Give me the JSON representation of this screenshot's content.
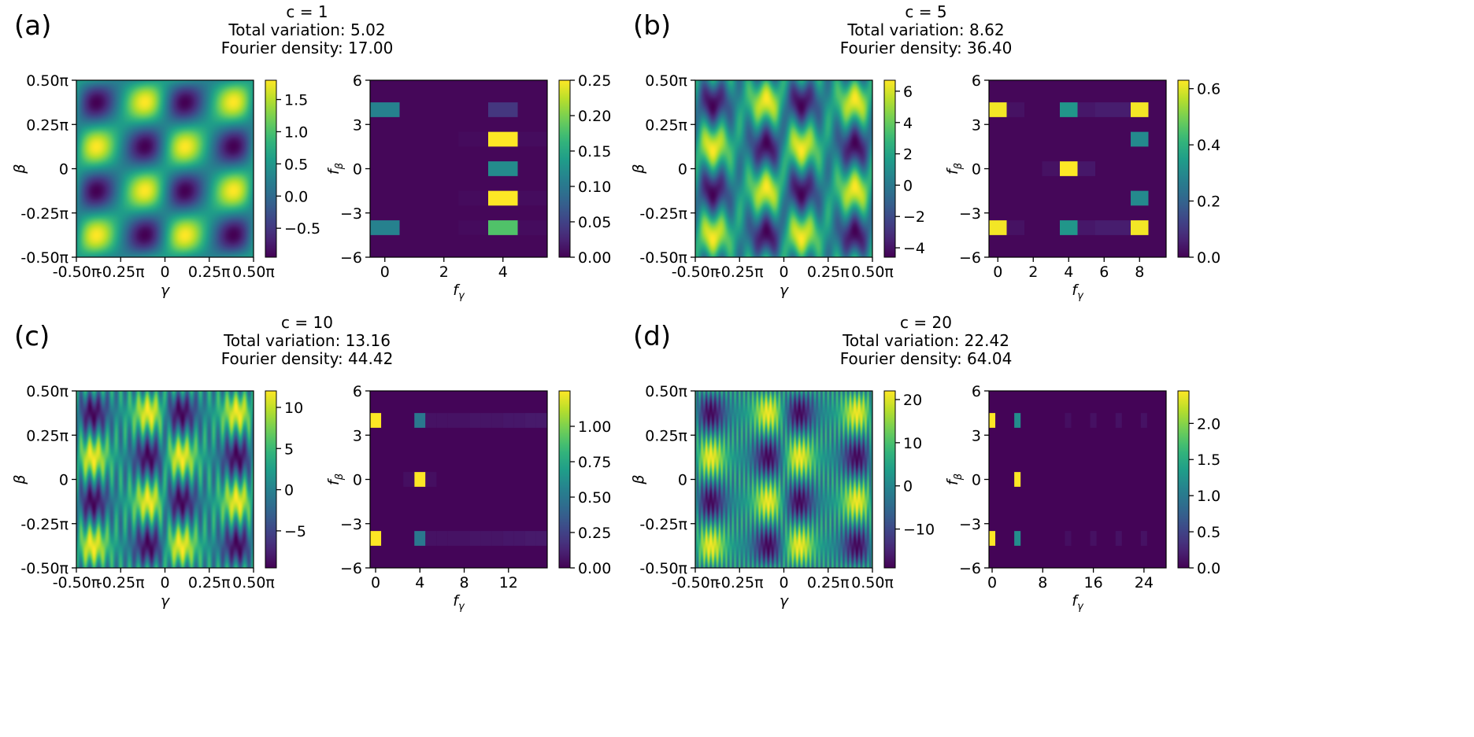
{
  "colors": {
    "viridis": [
      "#440154",
      "#482878",
      "#3e4989",
      "#31688e",
      "#26828e",
      "#1f9e89",
      "#35b779",
      "#6ece58",
      "#b5de2b",
      "#fde725"
    ]
  },
  "chart_data": [
    {
      "panel_label": "(a)",
      "title": [
        "c = 1",
        "Total variation: 5.02",
        "Fourier density: 17.00"
      ],
      "landscape": {
        "type": "heatmap",
        "xlabel": "γ",
        "ylabel": "β",
        "x_ticks": [
          "-0.50π",
          "-0.25π",
          "0",
          "0.25π",
          "0.50π"
        ],
        "y_ticks": [
          "0.50π",
          "0.25π",
          "0",
          "-0.25π",
          "-0.50π"
        ],
        "c": 1,
        "colorbar": {
          "min": -0.95,
          "max": 1.8,
          "ticks": [
            -0.5,
            0.0,
            0.5,
            1.0,
            1.5
          ],
          "labels": [
            "−0.5",
            "0.0",
            "0.5",
            "1.0",
            "1.5"
          ]
        }
      },
      "spectrum": {
        "type": "heatmap",
        "xlabel": "f_γ",
        "ylabel": "f_β",
        "x_range": [
          -0.5,
          5.5
        ],
        "y_range": [
          -6,
          6
        ],
        "x_ticks": [
          0,
          2,
          4
        ],
        "y_ticks": [
          6,
          3,
          0,
          -3,
          -6
        ],
        "background": 0.004,
        "cells": [
          [
            0,
            4,
            0.11
          ],
          [
            0,
            -4,
            0.11
          ],
          [
            4,
            4,
            0.04
          ],
          [
            4,
            2,
            0.25
          ],
          [
            4,
            0,
            0.12
          ],
          [
            4,
            -2,
            0.25
          ],
          [
            4,
            -4,
            0.18
          ],
          [
            3,
            2,
            0.007
          ],
          [
            3,
            -2,
            0.007
          ],
          [
            3,
            -4,
            0.007
          ],
          [
            5,
            2,
            0.008
          ],
          [
            5,
            -2,
            0.008
          ],
          [
            5,
            -4,
            0.008
          ]
        ],
        "colorbar": {
          "min": 0,
          "max": 0.25,
          "ticks": [
            0.0,
            0.05,
            0.1,
            0.15,
            0.2,
            0.25
          ],
          "labels": [
            "0.00",
            "0.05",
            "0.10",
            "0.15",
            "0.20",
            "0.25"
          ]
        }
      }
    },
    {
      "panel_label": "(b)",
      "title": [
        "c = 5",
        "Total variation: 8.62",
        "Fourier density: 36.40"
      ],
      "landscape": {
        "type": "heatmap",
        "xlabel": "γ",
        "ylabel": "β",
        "x_ticks": [
          "-0.50π",
          "-0.25π",
          "0",
          "0.25π",
          "0.50π"
        ],
        "y_ticks": [
          "0.50π",
          "0.25π",
          "0",
          "-0.25π",
          "-0.50π"
        ],
        "c": 5,
        "colorbar": {
          "min": -4.6,
          "max": 6.7,
          "ticks": [
            -4,
            -2,
            0,
            2,
            4,
            6
          ],
          "labels": [
            "−4",
            "−2",
            "0",
            "2",
            "4",
            "6"
          ]
        }
      },
      "spectrum": {
        "type": "heatmap",
        "xlabel": "f_γ",
        "ylabel": "f_β",
        "x_range": [
          -0.5,
          9.5
        ],
        "y_range": [
          -6,
          6
        ],
        "x_ticks": [
          0,
          2,
          4,
          6,
          8
        ],
        "y_ticks": [
          6,
          3,
          0,
          -3,
          -6
        ],
        "background": 0.01,
        "cells": [
          [
            0,
            4,
            0.62
          ],
          [
            0,
            -4,
            0.62
          ],
          [
            4,
            4,
            0.33
          ],
          [
            4,
            -4,
            0.33
          ],
          [
            4,
            0,
            0.63
          ],
          [
            8,
            4,
            0.62
          ],
          [
            8,
            -4,
            0.62
          ],
          [
            8,
            2,
            0.3
          ],
          [
            8,
            -2,
            0.3
          ],
          [
            5,
            4,
            0.04
          ],
          [
            6,
            4,
            0.05
          ],
          [
            7,
            4,
            0.05
          ],
          [
            5,
            0,
            0.04
          ],
          [
            3,
            0,
            0.03
          ],
          [
            5,
            -4,
            0.04
          ],
          [
            6,
            -4,
            0.05
          ],
          [
            7,
            -4,
            0.05
          ],
          [
            1,
            4,
            0.03
          ],
          [
            1,
            -4,
            0.03
          ]
        ],
        "colorbar": {
          "min": 0,
          "max": 0.63,
          "ticks": [
            0.0,
            0.2,
            0.4,
            0.6
          ],
          "labels": [
            "0.0",
            "0.2",
            "0.4",
            "0.6"
          ]
        }
      }
    },
    {
      "panel_label": "(c)",
      "title": [
        "c = 10",
        "Total variation: 13.16",
        "Fourier density: 44.42"
      ],
      "landscape": {
        "type": "heatmap",
        "xlabel": "γ",
        "ylabel": "β",
        "x_ticks": [
          "-0.50π",
          "-0.25π",
          "0",
          "0.25π",
          "0.50π"
        ],
        "y_ticks": [
          "0.50π",
          "0.25π",
          "0",
          "-0.25π",
          "-0.50π"
        ],
        "c": 10,
        "colorbar": {
          "min": -9.5,
          "max": 12,
          "ticks": [
            -5,
            0,
            5,
            10
          ],
          "labels": [
            "−5",
            "0",
            "5",
            "10"
          ]
        }
      },
      "spectrum": {
        "type": "heatmap",
        "xlabel": "f_γ",
        "ylabel": "f_β",
        "x_range": [
          -0.5,
          15.5
        ],
        "y_range": [
          -6,
          6
        ],
        "x_ticks": [
          0,
          4,
          8,
          12
        ],
        "y_ticks": [
          6,
          3,
          0,
          -3,
          -6
        ],
        "background": 0.015,
        "cells": [
          [
            0,
            4,
            1.25
          ],
          [
            0,
            -4,
            1.25
          ],
          [
            4,
            4,
            0.5
          ],
          [
            4,
            -4,
            0.5
          ],
          [
            4,
            0,
            1.25
          ],
          [
            5,
            4,
            0.06
          ],
          [
            6,
            4,
            0.06
          ],
          [
            7,
            4,
            0.06
          ],
          [
            8,
            4,
            0.06
          ],
          [
            9,
            4,
            0.07
          ],
          [
            10,
            4,
            0.07
          ],
          [
            11,
            4,
            0.07
          ],
          [
            12,
            4,
            0.08
          ],
          [
            13,
            4,
            0.08
          ],
          [
            14,
            4,
            0.09
          ],
          [
            15,
            4,
            0.09
          ],
          [
            5,
            -4,
            0.06
          ],
          [
            6,
            -4,
            0.06
          ],
          [
            7,
            -4,
            0.06
          ],
          [
            8,
            -4,
            0.06
          ],
          [
            9,
            -4,
            0.07
          ],
          [
            10,
            -4,
            0.07
          ],
          [
            11,
            -4,
            0.07
          ],
          [
            12,
            -4,
            0.08
          ],
          [
            13,
            -4,
            0.08
          ],
          [
            14,
            -4,
            0.09
          ],
          [
            15,
            -4,
            0.09
          ],
          [
            3,
            0,
            0.05
          ],
          [
            5,
            0,
            0.05
          ]
        ],
        "colorbar": {
          "min": 0,
          "max": 1.25,
          "ticks": [
            0.0,
            0.25,
            0.5,
            0.75,
            1.0
          ],
          "labels": [
            "0.00",
            "0.25",
            "0.50",
            "0.75",
            "1.00"
          ]
        }
      }
    },
    {
      "panel_label": "(d)",
      "title": [
        "c = 20",
        "Total variation: 22.42",
        "Fourier density: 64.04"
      ],
      "landscape": {
        "type": "heatmap",
        "xlabel": "γ",
        "ylabel": "β",
        "x_ticks": [
          "-0.50π",
          "-0.25π",
          "0",
          "0.25π",
          "0.50π"
        ],
        "y_ticks": [
          "0.50π",
          "0.25π",
          "0",
          "-0.25π",
          "-0.50π"
        ],
        "c": 20,
        "colorbar": {
          "min": -19,
          "max": 22,
          "ticks": [
            -10,
            0,
            10,
            20
          ],
          "labels": [
            "−10",
            "0",
            "10",
            "20"
          ]
        }
      },
      "spectrum": {
        "type": "heatmap",
        "xlabel": "f_γ",
        "ylabel": "f_β",
        "x_range": [
          -0.5,
          27.5
        ],
        "y_range": [
          -6,
          6
        ],
        "x_ticks": [
          0,
          8,
          16,
          24
        ],
        "y_ticks": [
          6,
          3,
          0,
          -3,
          -6
        ],
        "background": 0.02,
        "cells": [
          [
            0,
            4,
            2.45
          ],
          [
            0,
            -4,
            2.45
          ],
          [
            4,
            4,
            1.2
          ],
          [
            4,
            -4,
            1.2
          ],
          [
            4,
            0,
            2.45
          ],
          [
            12,
            4,
            0.1
          ],
          [
            16,
            4,
            0.11
          ],
          [
            20,
            4,
            0.12
          ],
          [
            24,
            4,
            0.12
          ],
          [
            12,
            -4,
            0.1
          ],
          [
            16,
            -4,
            0.11
          ],
          [
            20,
            -4,
            0.12
          ],
          [
            24,
            -4,
            0.12
          ]
        ],
        "colorbar": {
          "min": 0,
          "max": 2.45,
          "ticks": [
            0.0,
            0.5,
            1.0,
            1.5,
            2.0
          ],
          "labels": [
            "0.0",
            "0.5",
            "1.0",
            "1.5",
            "2.0"
          ]
        }
      }
    }
  ]
}
